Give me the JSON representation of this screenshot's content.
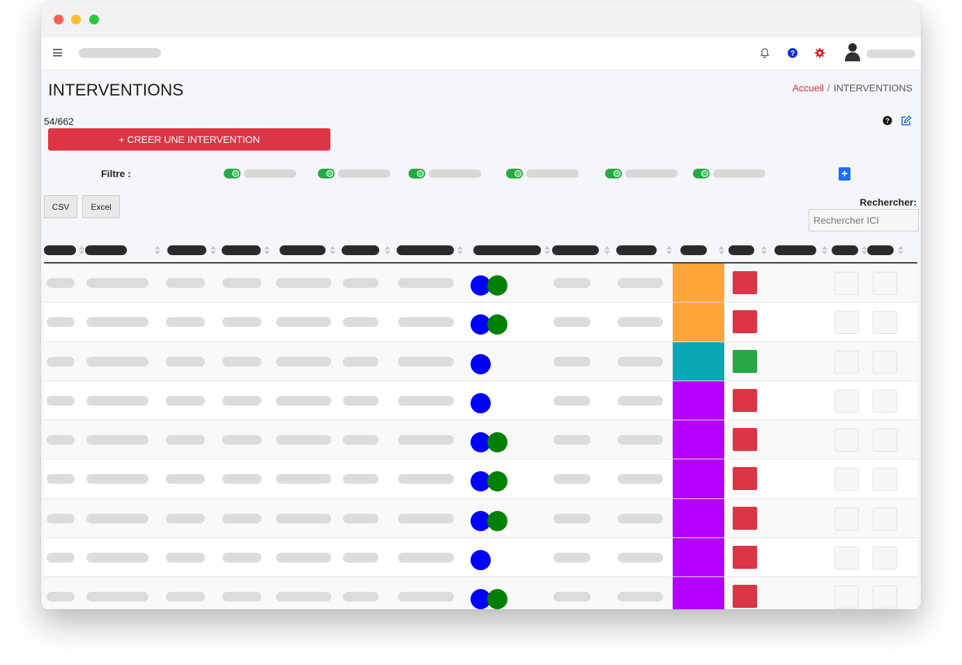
{
  "navbar": {
    "menu_icon": "hamburger-icon",
    "icons": [
      "bell-icon",
      "help-circle-icon",
      "gear-icon",
      "user-avatar-icon"
    ]
  },
  "page": {
    "title": "INTERVENTIONS",
    "breadcrumb_home": "Accueil",
    "breadcrumb_sep": "/",
    "breadcrumb_current": "INTERVENTIONS",
    "count": "54/662",
    "create_button": "+ CREER UNE INTERVENTION",
    "filter_label": "Filtre :",
    "filter_count": 6,
    "add_filter_label": "+",
    "csv_label": "CSV",
    "excel_label": "Excel",
    "search_label": "Rechercher:",
    "search_placeholder": "Rechercher ICI"
  },
  "colors": {
    "primary_red": "#dc3545",
    "filter_toggle_green": "#28a745",
    "blue_dot": "#0000ff",
    "green_dot": "#008000",
    "status_orange": "#ffa53a",
    "status_teal": "#0aa7b5",
    "status_purple": "#b300ff",
    "square_red": "#dc3545",
    "square_green": "#28a745"
  },
  "table": {
    "rows": [
      {
        "dots": [
          "blue",
          "green"
        ],
        "status": "orange",
        "square": "red"
      },
      {
        "dots": [
          "blue",
          "green"
        ],
        "status": "orange",
        "square": "red"
      },
      {
        "dots": [
          "blue"
        ],
        "status": "teal",
        "square": "green"
      },
      {
        "dots": [
          "blue"
        ],
        "status": "purple",
        "square": "red"
      },
      {
        "dots": [
          "blue",
          "green"
        ],
        "status": "purple",
        "square": "red"
      },
      {
        "dots": [
          "blue",
          "green"
        ],
        "status": "purple",
        "square": "red"
      },
      {
        "dots": [
          "blue",
          "green"
        ],
        "status": "purple",
        "square": "red"
      },
      {
        "dots": [
          "blue"
        ],
        "status": "purple",
        "square": "red"
      },
      {
        "dots": [
          "blue",
          "green"
        ],
        "status": "purple",
        "square": "red"
      }
    ]
  }
}
